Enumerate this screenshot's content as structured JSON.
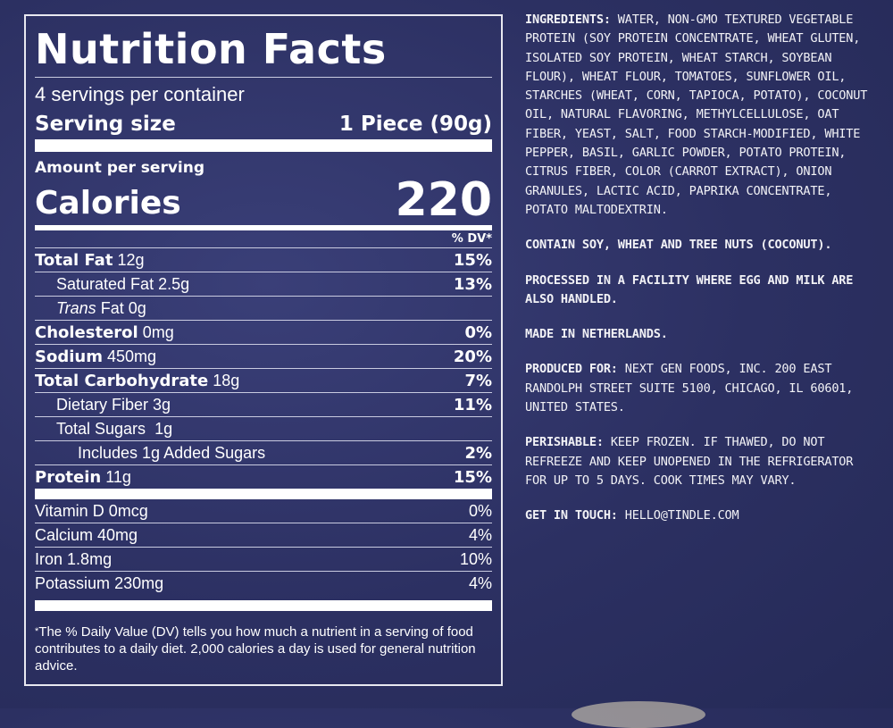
{
  "panel": {
    "title": "Nutrition Facts",
    "servings_per_container": "4 servings per container",
    "serving_size_label": "Serving size",
    "serving_size_value": "1 Piece (90g)",
    "amount_per_serving": "Amount per serving",
    "calories_label": "Calories",
    "calories_value": "220",
    "dv_header": "% DV*",
    "nutrients": [
      {
        "name": "Total Fat",
        "amount": "12g",
        "dv": "15%"
      },
      {
        "name": "Saturated Fat",
        "amount": "2.5g",
        "dv": "13%"
      },
      {
        "name": "Trans",
        "name_suffix": "Fat",
        "amount": "0g",
        "dv": ""
      },
      {
        "name": "Cholesterol",
        "amount": "0mg",
        "dv": "0%"
      },
      {
        "name": "Sodium",
        "amount": "450mg",
        "dv": "20%"
      },
      {
        "name": "Total Carbohydrate",
        "amount": "18g",
        "dv": "7%"
      },
      {
        "name": "Dietary Fiber",
        "amount": "3g",
        "dv": "11%"
      },
      {
        "name": "Total Sugars",
        "amount": "1g",
        "dv": ""
      },
      {
        "name": "Includes 1g Added Sugars",
        "amount": "",
        "dv": "2%"
      },
      {
        "name": "Protein",
        "amount": "11g",
        "dv": "15%"
      }
    ],
    "vitamins": [
      {
        "name": "Vitamin D",
        "amount": "0mcg",
        "dv": "0%"
      },
      {
        "name": "Calcium",
        "amount": "40mg",
        "dv": "4%"
      },
      {
        "name": "Iron",
        "amount": "1.8mg",
        "dv": "10%"
      },
      {
        "name": "Potassium",
        "amount": "230mg",
        "dv": "4%"
      }
    ],
    "footnote": "The % Daily Value (DV) tells you how much a nutrient in a serving of food contributes to a daily diet. 2,000 calories a day is used for general nutrition advice."
  },
  "label_text": {
    "ingredients_head": "INGREDIENTS:",
    "ingredients_body": "WATER, NON-GMO TEXTURED VEGETABLE PROTEIN (SOY PROTEIN CONCENTRATE, WHEAT GLUTEN, ISOLATED SOY PROTEIN, WHEAT STARCH, SOYBEAN FLOUR), WHEAT FLOUR, TOMATOES, SUNFLOWER OIL, STARCHES (WHEAT, CORN, TAPIOCA, POTATO), COCONUT OIL, NATURAL FLAVORING, METHYLCELLULOSE, OAT FIBER, YEAST, SALT, FOOD STARCH-MODIFIED, WHITE PEPPER, BASIL, GARLIC POWDER, POTATO PROTEIN, CITRUS FIBER, COLOR (CARROT EXTRACT), ONION GRANULES, LACTIC ACID, PAPRIKA CONCENTRATE, POTATO MALTODEXTRIN.",
    "contains": "CONTAIN SOY, WHEAT AND TREE NUTS (COCONUT).",
    "facility": "PROCESSED IN A FACILITY WHERE EGG AND MILK ARE ALSO HANDLED.",
    "origin": "MADE IN NETHERLANDS.",
    "produced_head": "PRODUCED FOR:",
    "produced_body": "NEXT GEN FOODS, INC. 200 EAST RANDOLPH STREET SUITE 5100, CHICAGO, IL 60601, UNITED STATES.",
    "perishable_head": "PERISHABLE:",
    "perishable_body": "KEEP FROZEN. IF THAWED, DO NOT REFREEZE AND KEEP UNOPENED IN THE REFRIGERATOR FOR UP TO 5 DAYS. COOK TIMES MAY VARY.",
    "contact_head": "GET IN TOUCH:",
    "contact_body": "HELLO@TINDLE.COM"
  }
}
